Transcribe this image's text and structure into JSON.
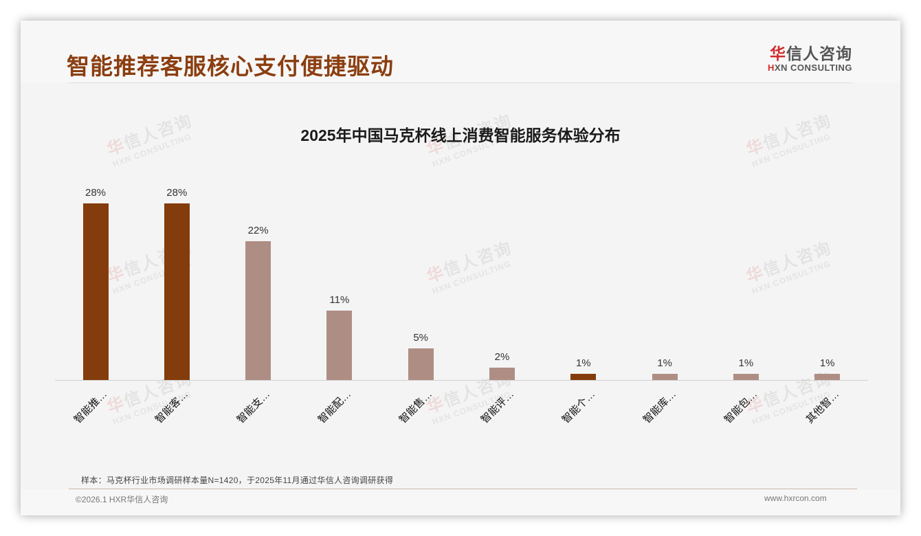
{
  "header": {
    "title": "智能推荐客服核心支付便捷驱动",
    "logo_cn_mark": "华",
    "logo_cn_rest": "信人咨询",
    "logo_en_mark": "H",
    "logo_en_rest": "XN CONSULTING"
  },
  "watermark": {
    "cn_mark": "华",
    "cn_rest": "信人咨询",
    "en": "HXN CONSULTING"
  },
  "colors": {
    "title": "#8b3e10",
    "bar_highlight": "#843c0c",
    "bar_normal": "#ae8e84",
    "logo_red": "#d22a2a"
  },
  "chart_data": {
    "type": "bar",
    "title": "2025年中国马克杯线上消费智能服务体验分布",
    "xlabel": "",
    "ylabel": "",
    "ylim": [
      0,
      30
    ],
    "grid": false,
    "legend": null,
    "categories": [
      "智能推…",
      "智能客…",
      "智能支…",
      "智能配…",
      "智能售…",
      "智能评…",
      "智能个…",
      "智能库…",
      "智能包…",
      "其他智…"
    ],
    "values": [
      28,
      28,
      22,
      11,
      5,
      2,
      1,
      1,
      1,
      1
    ],
    "value_labels": [
      "28%",
      "28%",
      "22%",
      "11%",
      "5%",
      "2%",
      "1%",
      "1%",
      "1%",
      "1%"
    ],
    "highlighted": [
      true,
      true,
      false,
      false,
      false,
      false,
      true,
      false,
      false,
      false
    ],
    "unit": "%"
  },
  "footer": {
    "note": "样本：马克杯行业市场调研样本量N=1420，于2025年11月通过华信人咨询调研获得",
    "copyright": "©2026.1 HXR华信人咨询",
    "website": "www.hxrcon.com"
  }
}
